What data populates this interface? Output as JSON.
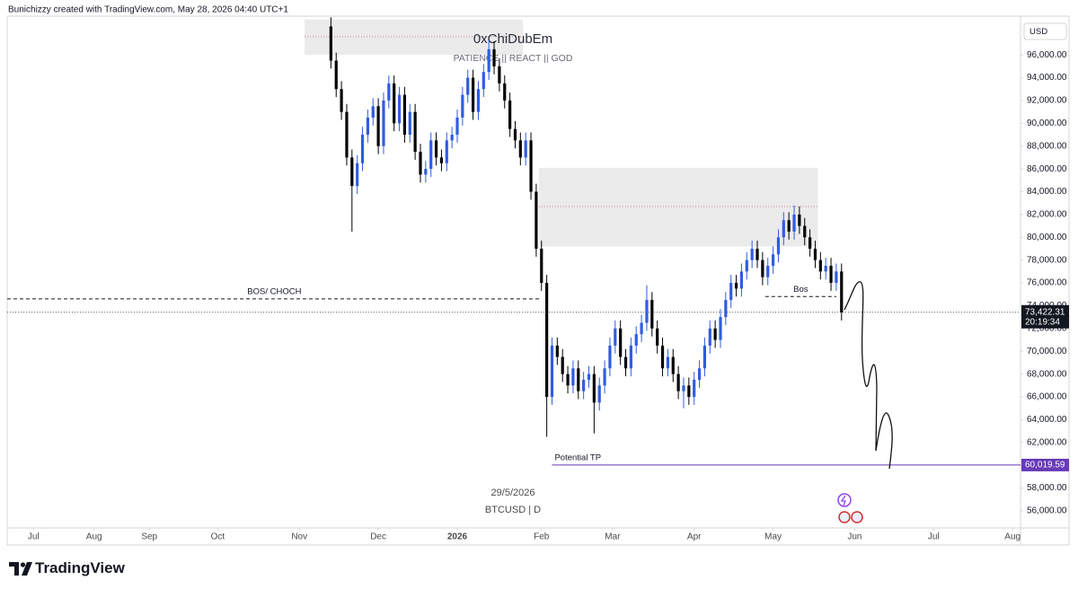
{
  "chart_data": {
    "type": "candlestick",
    "header": "Bunichizzy created with TradingView.com, May 28, 2026 04:40 UTC+1",
    "title": "0xChiDubEm",
    "subtitle": "PATIENCE || REACT || GOD",
    "date_label": "29/5/2026",
    "symbol": "BTCUSD | D",
    "currency": "USD",
    "brand": "TradingView",
    "up_color": "#2f5ce0",
    "down_color": "#000000",
    "grid": false,
    "xlim": [
      12,
      397
    ],
    "xticks": [
      {
        "value": 22,
        "label": "Jul"
      },
      {
        "value": 45,
        "label": "Aug"
      },
      {
        "value": 66,
        "label": "Sep"
      },
      {
        "value": 92,
        "label": "Oct"
      },
      {
        "value": 123,
        "label": "Nov"
      },
      {
        "value": 153,
        "label": "Dec"
      },
      {
        "value": 183,
        "label": "2026"
      },
      {
        "value": 215,
        "label": "Feb"
      },
      {
        "value": 242,
        "label": "Mar"
      },
      {
        "value": 273,
        "label": "Apr"
      },
      {
        "value": 303,
        "label": "May"
      },
      {
        "value": 334,
        "label": "Jun"
      },
      {
        "value": 364,
        "label": "Jul"
      },
      {
        "value": 394,
        "label": "Aug"
      }
    ],
    "ylim": [
      54500,
      99400
    ],
    "yticks": [
      {
        "value": 56000,
        "label": "56,000.00"
      },
      {
        "value": 58000,
        "label": "58,000.00"
      },
      {
        "value": 60000,
        "label": "60,000.00"
      },
      {
        "value": 62000,
        "label": "62,000.00"
      },
      {
        "value": 64000,
        "label": "64,000.00"
      },
      {
        "value": 66000,
        "label": "66,000.00"
      },
      {
        "value": 68000,
        "label": "68,000.00"
      },
      {
        "value": 70000,
        "label": "70,000.00"
      },
      {
        "value": 72000,
        "label": "72,000.00"
      },
      {
        "value": 74000,
        "label": "74,000.00"
      },
      {
        "value": 76000,
        "label": "76,000.00"
      },
      {
        "value": 78000,
        "label": "78,000.00"
      },
      {
        "value": 80000,
        "label": "80,000.00"
      },
      {
        "value": 82000,
        "label": "82,000.00"
      },
      {
        "value": 84000,
        "label": "84,000.00"
      },
      {
        "value": 86000,
        "label": "86,000.00"
      },
      {
        "value": 88000,
        "label": "88,000.00"
      },
      {
        "value": 90000,
        "label": "90,000.00"
      },
      {
        "value": 92000,
        "label": "92,000.00"
      },
      {
        "value": 94000,
        "label": "94,000.00"
      },
      {
        "value": 96000,
        "label": "96,000.00"
      }
    ],
    "x": [
      135,
      137,
      139,
      141,
      143,
      145,
      147,
      149,
      151,
      153,
      155,
      157,
      159,
      161,
      163,
      165,
      167,
      169,
      171,
      173,
      175,
      177,
      179,
      181,
      183,
      185,
      187,
      189,
      191,
      193,
      195,
      197,
      199,
      201,
      203,
      205,
      207,
      209,
      211,
      213,
      215,
      217,
      219,
      221,
      223,
      225,
      227,
      229,
      231,
      233,
      235,
      237,
      239,
      241,
      243,
      245,
      247,
      249,
      251,
      253,
      255,
      257,
      259,
      261,
      263,
      265,
      267,
      269,
      271,
      273,
      275,
      277,
      279,
      281,
      283,
      285,
      287,
      289,
      291,
      293,
      295,
      297,
      299,
      301,
      303,
      305,
      307,
      309,
      311,
      313,
      315,
      317,
      319,
      321,
      323,
      325,
      327,
      329
    ],
    "open": [
      98500,
      95500,
      93000,
      91000,
      87000,
      84500,
      86500,
      89000,
      90500,
      91500,
      88000,
      92000,
      93500,
      90000,
      92500,
      89000,
      91000,
      87500,
      85500,
      86000,
      88500,
      87000,
      86500,
      88500,
      89000,
      90500,
      92500,
      94000,
      91000,
      93000,
      94500,
      96500,
      95000,
      93500,
      92000,
      89500,
      88500,
      87000,
      88500,
      84000,
      79000,
      76000,
      66000,
      70500,
      69500,
      68000,
      67000,
      68500,
      66500,
      67500,
      68000,
      65500,
      67000,
      68500,
      70500,
      72000,
      69500,
      68500,
      70500,
      71500,
      72500,
      74500,
      72000,
      70500,
      68500,
      69500,
      68000,
      66500,
      67000,
      66000,
      67500,
      68500,
      70500,
      72000,
      71000,
      73000,
      74500,
      76000,
      75500,
      77000,
      78000,
      79000,
      78000,
      76500,
      77500,
      78500,
      80000,
      81500,
      80500,
      82000,
      81000,
      80000,
      79000,
      78000,
      77000,
      77500,
      76000,
      77000
    ],
    "high": [
      99300,
      96200,
      93700,
      91700,
      87700,
      87200,
      89700,
      91200,
      92200,
      92200,
      92700,
      94200,
      94200,
      93200,
      93200,
      91700,
      91700,
      88200,
      86700,
      89200,
      89200,
      87700,
      89200,
      89700,
      91200,
      93200,
      94700,
      94700,
      93700,
      95200,
      97300,
      97200,
      95700,
      94200,
      92700,
      90200,
      89200,
      89200,
      89200,
      84700,
      79700,
      76700,
      71200,
      71200,
      70200,
      68700,
      69200,
      69200,
      68200,
      68700,
      68700,
      67700,
      69200,
      71200,
      72700,
      72700,
      70200,
      71200,
      72200,
      73200,
      75800,
      75200,
      72700,
      71200,
      70200,
      70200,
      68700,
      67700,
      67700,
      68200,
      69200,
      71200,
      72700,
      72700,
      73700,
      75200,
      76700,
      76700,
      77700,
      78700,
      79700,
      79700,
      78700,
      78200,
      79200,
      80700,
      82200,
      82200,
      82800,
      82700,
      81700,
      80700,
      79700,
      78700,
      78200,
      78200,
      77700,
      77700
    ],
    "low": [
      94800,
      92300,
      90300,
      86300,
      80500,
      83800,
      85800,
      88300,
      89800,
      87300,
      87300,
      91300,
      89300,
      89300,
      88300,
      88300,
      86800,
      84800,
      84800,
      85300,
      86300,
      85800,
      85800,
      87800,
      88300,
      89800,
      91800,
      90300,
      90300,
      92300,
      93800,
      94300,
      92800,
      91300,
      88800,
      87800,
      86300,
      86300,
      83300,
      78300,
      75300,
      62500,
      65300,
      68800,
      67300,
      66300,
      66300,
      65800,
      65800,
      66800,
      62800,
      64800,
      66300,
      67800,
      69800,
      68800,
      67800,
      67800,
      69800,
      70800,
      71800,
      71300,
      69800,
      67800,
      67800,
      67300,
      65800,
      65000,
      65300,
      65300,
      66800,
      67800,
      69800,
      70300,
      70300,
      72300,
      73800,
      74800,
      74800,
      76300,
      77300,
      77300,
      75800,
      75800,
      76800,
      77800,
      79300,
      79800,
      79800,
      80300,
      79300,
      78300,
      77300,
      76300,
      76300,
      75300,
      75300,
      72700
    ],
    "close": [
      95500,
      93000,
      91000,
      87000,
      84500,
      86500,
      89000,
      90500,
      91500,
      88000,
      92000,
      93500,
      90000,
      92500,
      89000,
      91000,
      87500,
      85500,
      86000,
      88500,
      87000,
      86500,
      88500,
      89000,
      90500,
      92500,
      94000,
      91000,
      93000,
      94500,
      96500,
      95000,
      93500,
      92000,
      89500,
      88500,
      87000,
      88500,
      84000,
      79000,
      76000,
      66000,
      70500,
      69500,
      68000,
      67000,
      68500,
      66500,
      67500,
      68000,
      65500,
      67000,
      68500,
      70500,
      72000,
      69500,
      68500,
      70500,
      71500,
      72500,
      74500,
      72000,
      70500,
      68500,
      69500,
      68000,
      66500,
      67000,
      66000,
      67500,
      68500,
      70500,
      72000,
      71000,
      73000,
      74500,
      76000,
      75500,
      77000,
      78000,
      79000,
      78000,
      76500,
      77500,
      78500,
      80000,
      81500,
      80500,
      82000,
      81000,
      80000,
      79000,
      78000,
      77000,
      77500,
      76000,
      77000,
      73422
    ],
    "zones": [
      {
        "x": [
          125,
          208
        ],
        "y": [
          96000,
          99100
        ],
        "mid": 97600
      },
      {
        "x": [
          214,
          320
        ],
        "y": [
          79200,
          86100
        ],
        "mid": 82700
      }
    ],
    "levels": [
      {
        "text": "BOS/ CHOCH",
        "price": 74600,
        "x": [
          12,
          215
        ]
      },
      {
        "text": "Bos",
        "price": 74800,
        "x": [
          300,
          327
        ]
      }
    ],
    "target": {
      "text": "Potential TP",
      "price": 60019.59,
      "price_label": "60,019.59",
      "x": [
        219,
        397
      ],
      "color": "#673ab7"
    },
    "last_price": {
      "value": 73422.31,
      "label": "73,422.31",
      "countdown": "20:19:34"
    }
  }
}
